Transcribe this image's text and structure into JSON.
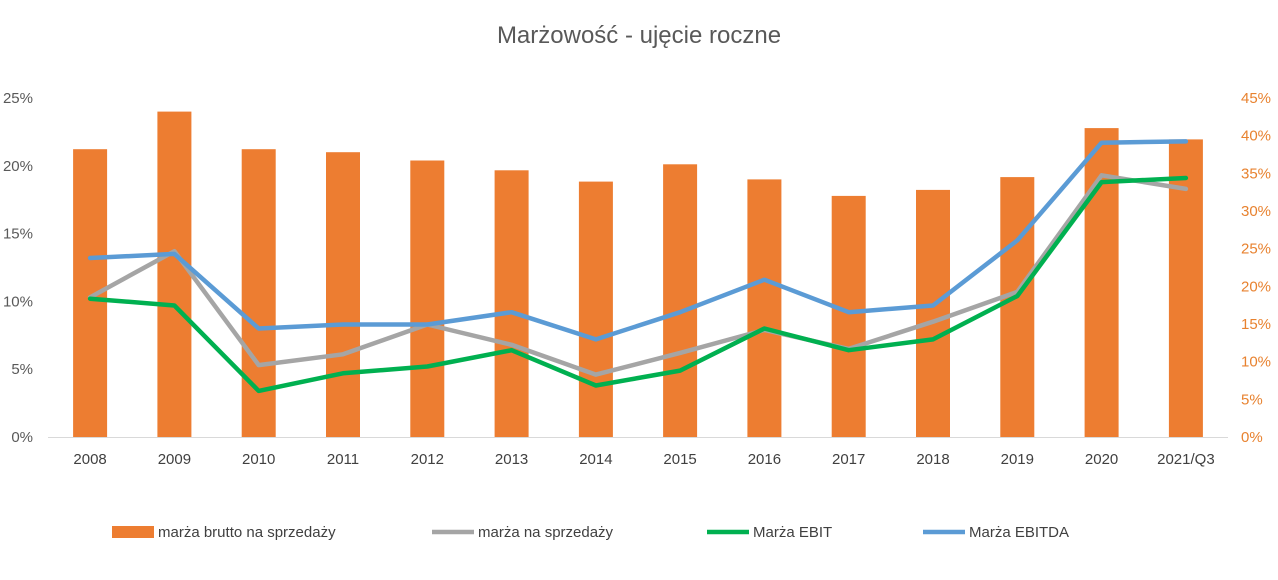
{
  "chart_data": {
    "type": "bar",
    "title": "Marżowość - ujęcie roczne",
    "categories": [
      "2008",
      "2009",
      "2010",
      "2011",
      "2012",
      "2013",
      "2014",
      "2015",
      "2016",
      "2017",
      "2018",
      "2019",
      "2020",
      "2021/Q3"
    ],
    "y_left": {
      "ylim": [
        0,
        25
      ],
      "ticks": [
        "0%",
        "5%",
        "10%",
        "15%",
        "20%",
        "25%"
      ]
    },
    "y_right": {
      "ylim": [
        0,
        45
      ],
      "ticks": [
        "0%",
        "5%",
        "10%",
        "15%",
        "20%",
        "25%",
        "30%",
        "35%",
        "40%",
        "45%"
      ]
    },
    "series": [
      {
        "name": "marża brutto na sprzedaży",
        "kind": "bar",
        "axis": "right",
        "color": "#ED7D31",
        "values": [
          38.2,
          43.2,
          38.2,
          37.8,
          36.7,
          35.4,
          33.9,
          36.2,
          34.2,
          32.0,
          32.8,
          34.5,
          41.0,
          39.5
        ]
      },
      {
        "name": "marża na sprzedaży",
        "kind": "line",
        "axis": "left",
        "color": "#A5A5A5",
        "values": [
          10.3,
          13.7,
          5.3,
          6.1,
          8.3,
          6.8,
          4.6,
          6.2,
          7.9,
          6.5,
          8.5,
          10.7,
          19.3,
          18.3
        ]
      },
      {
        "name": "Marża EBIT",
        "kind": "line",
        "axis": "left",
        "color": "#00B050",
        "values": [
          10.2,
          9.7,
          3.4,
          4.7,
          5.2,
          6.4,
          3.8,
          4.9,
          8.0,
          6.4,
          7.2,
          10.4,
          18.8,
          19.1
        ]
      },
      {
        "name": "Marża EBITDA",
        "kind": "line",
        "axis": "left",
        "color": "#5B9BD5",
        "values": [
          13.2,
          13.5,
          8.0,
          8.3,
          8.3,
          9.2,
          7.2,
          9.2,
          11.6,
          9.2,
          9.7,
          14.5,
          21.7,
          21.8
        ]
      }
    ],
    "grid": false,
    "legend_position": "bottom"
  }
}
